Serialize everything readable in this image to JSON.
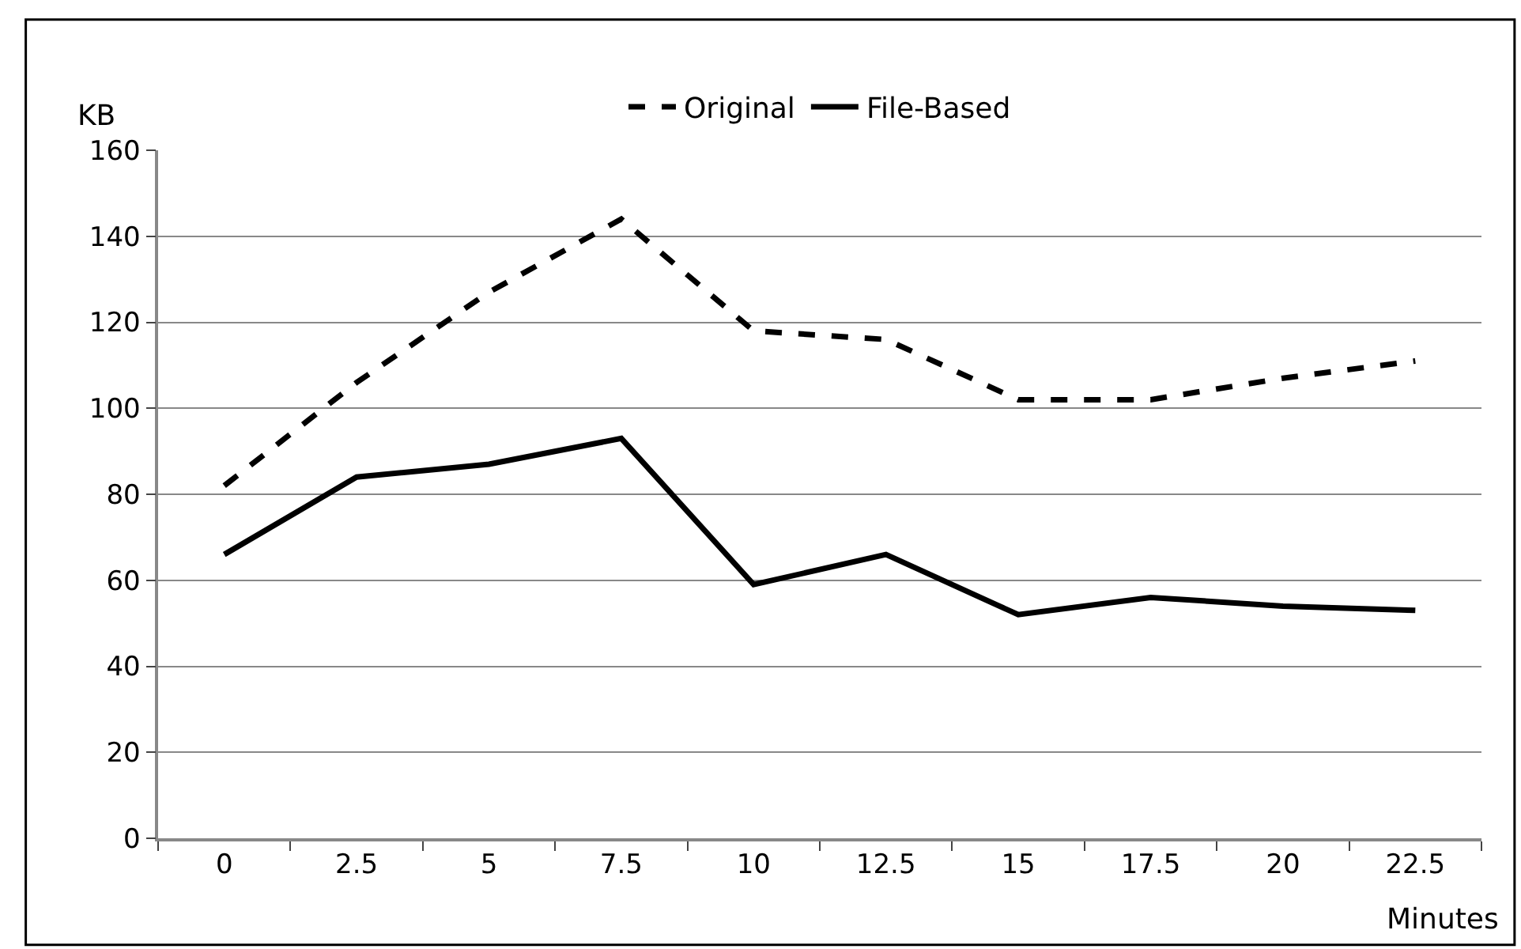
{
  "chart_data": {
    "type": "line",
    "xlabel": "Minutes",
    "ylabel": "KB",
    "categories": [
      "0",
      "2.5",
      "5",
      "7.5",
      "10",
      "12.5",
      "15",
      "17.5",
      "20",
      "22.5"
    ],
    "series": [
      {
        "name": "Original",
        "color": "#000000",
        "line_style": "dashed",
        "values": [
          82,
          106,
          127,
          144,
          118,
          116,
          102,
          102,
          107,
          111
        ]
      },
      {
        "name": "File-Based",
        "color": "#000000",
        "line_style": "solid",
        "values": [
          66,
          84,
          87,
          93,
          59,
          66,
          52,
          56,
          54,
          53
        ]
      }
    ],
    "ylim": [
      0,
      160
    ],
    "yticks": [
      0,
      20,
      40,
      60,
      80,
      100,
      120,
      140,
      160
    ],
    "grid": "y",
    "legend": "top",
    "marker": "none"
  }
}
